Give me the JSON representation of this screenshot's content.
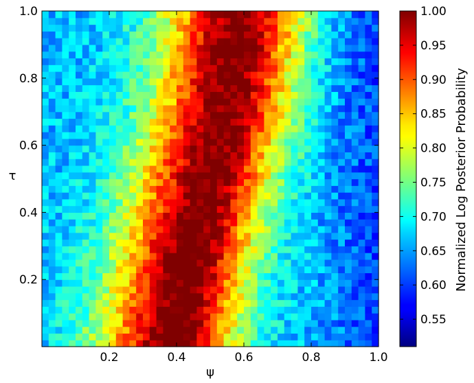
{
  "chart_data": {
    "type": "heatmap",
    "title": "",
    "xlabel": "ψ",
    "ylabel": "τ",
    "xlim": [
      0,
      1
    ],
    "ylim": [
      0,
      1
    ],
    "grid": false,
    "colormap": "jet",
    "x_ticks": [
      0.2,
      0.4,
      0.6,
      0.8,
      1.0
    ],
    "x_tick_labels": [
      "0.2",
      "0.4",
      "0.6",
      "0.8",
      "1.0"
    ],
    "y_ticks": [
      0.2,
      0.4,
      0.6,
      0.8,
      1.0
    ],
    "y_tick_labels": [
      "0.2",
      "0.4",
      "0.6",
      "0.8",
      "1.0"
    ],
    "grid_size": 50,
    "ridge": {
      "description_points": [
        {
          "tau": 0.1,
          "psi": 0.41
        },
        {
          "tau": 0.3,
          "psi": 0.45
        },
        {
          "tau": 0.5,
          "psi": 0.5
        },
        {
          "tau": 0.7,
          "psi": 0.55
        },
        {
          "tau": 0.9,
          "psi": 0.58
        }
      ]
    },
    "value_range": [
      0.51,
      1.0
    ],
    "colorbar": {
      "label": "Normalized Log Posterior Probability",
      "min": 0.51,
      "max": 1.0,
      "ticks": [
        0.55,
        0.6,
        0.65,
        0.7,
        0.75,
        0.8,
        0.85,
        0.9,
        0.95,
        1.0
      ],
      "tick_labels": [
        "0.55",
        "0.60",
        "0.65",
        "0.70",
        "0.75",
        "0.80",
        "0.85",
        "0.90",
        "0.95",
        "1.00"
      ]
    }
  }
}
